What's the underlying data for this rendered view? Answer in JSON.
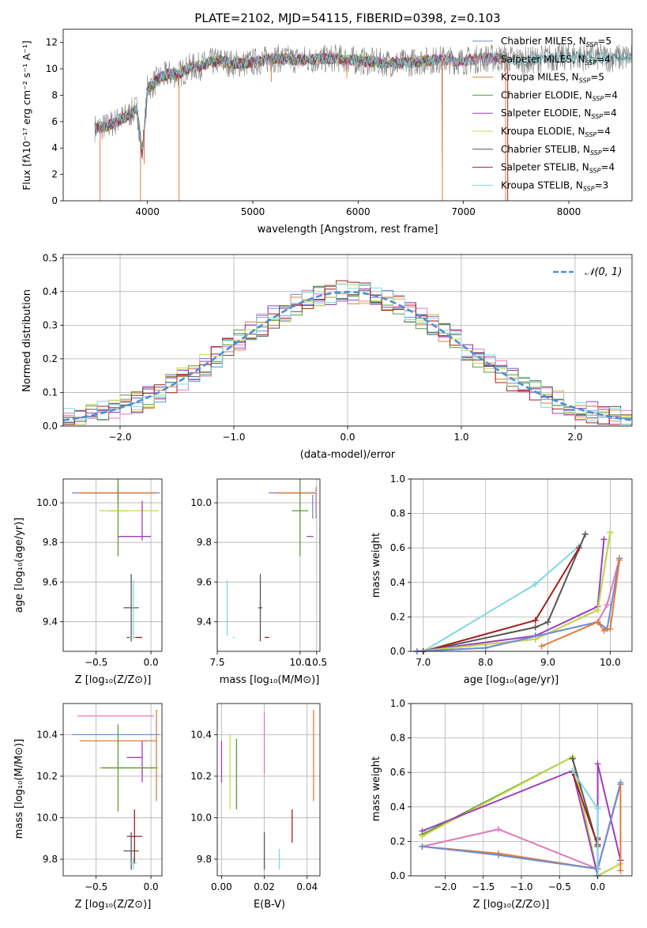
{
  "colors": {
    "Chabrier MILES": "#6a8fd8",
    "Salpeter MILES": "#e07ab8",
    "Kroupa MILES": "#e07b39",
    "Chabrier ELODIE": "#5a9a3a",
    "Salpeter ELODIE": "#9d3fbf",
    "Kroupa ELODIE": "#c8d84a",
    "Chabrier STELIB": "#555555",
    "Salpeter STELIB": "#a02020",
    "Kroupa STELIB": "#7fd8e0",
    "gauss": "#4a8fd8",
    "obs": "#808080"
  },
  "chart_data": [
    {
      "type": "line",
      "title": "PLATE=2102, MJD=54115, FIBERID=0398, z=0.103",
      "xlabel": "wavelength [Angstrom, rest frame]",
      "ylabel": "Flux [fλ10⁻¹⁷ erg cm⁻² s⁻¹ A⁻¹]",
      "xlim": [
        3200,
        8600
      ],
      "ylim": [
        0,
        13
      ],
      "xticks": [
        4000,
        5000,
        6000,
        7000,
        8000
      ],
      "yticks": [
        0,
        2,
        4,
        6,
        8,
        10,
        12
      ],
      "legend_position": "right",
      "legend": [
        {
          "label": "Chabrier MILES, N_SSP=5",
          "text": "Chabrier MILES, N",
          "n": "5"
        },
        {
          "label": "Salpeter MILES, N_SSP=4",
          "text": "Salpeter MILES, N",
          "n": "4"
        },
        {
          "label": "Kroupa MILES, N_SSP=5",
          "text": "Kroupa MILES, N",
          "n": "5"
        },
        {
          "label": "Chabrier ELODIE, N_SSP=4",
          "text": "Chabrier ELODIE, N",
          "n": "4"
        },
        {
          "label": "Salpeter ELODIE, N_SSP=4",
          "text": "Salpeter ELODIE, N",
          "n": "4"
        },
        {
          "label": "Kroupa ELODIE, N_SSP=4",
          "text": "Kroupa ELODIE, N",
          "n": "4"
        },
        {
          "label": "Chabrier STELIB, N_SSP=4",
          "text": "Chabrier STELIB, N",
          "n": "4"
        },
        {
          "label": "Salpeter STELIB, N_SSP=4",
          "text": "Salpeter STELIB, N",
          "n": "4"
        },
        {
          "label": "Kroupa STELIB, N_SSP=3",
          "text": "Kroupa STELIB, N",
          "n": "3"
        }
      ],
      "continuum": {
        "x": [
          3500,
          3600,
          3700,
          3800,
          3900,
          3950,
          4000,
          4100,
          4200,
          4300,
          4400,
          4500,
          4600,
          4700,
          4800,
          4900,
          5000,
          5200,
          5400,
          5600,
          5800,
          6000,
          6200,
          6400,
          6600,
          6800,
          7000,
          7200,
          7400,
          7600,
          7800,
          8000,
          8200,
          8400,
          8600
        ],
        "y": [
          5.5,
          5.6,
          6.0,
          6.4,
          7.0,
          3.5,
          8.5,
          9.2,
          9.6,
          9.6,
          10.1,
          10.2,
          10.5,
          10.6,
          10.4,
          10.4,
          10.5,
          10.8,
          10.7,
          10.7,
          10.8,
          10.6,
          10.5,
          10.4,
          10.6,
          10.7,
          10.6,
          10.8,
          10.8,
          10.6,
          10.8,
          10.9,
          10.9,
          10.8,
          10.9
        ]
      },
      "absorption_lines": [
        {
          "x": 3550,
          "y": 0
        },
        {
          "x": 3934,
          "y": 0
        },
        {
          "x": 3969,
          "y": 2.8
        },
        {
          "x": 4300,
          "y": 0
        },
        {
          "x": 5175,
          "y": 9.0
        },
        {
          "x": 5893,
          "y": 9.3
        },
        {
          "x": 6800,
          "y": 0
        },
        {
          "x": 7400,
          "y": 0
        }
      ]
    },
    {
      "type": "line",
      "xlabel": "(data-model)/error",
      "ylabel": "Normed distribution",
      "xlim": [
        -2.5,
        2.5
      ],
      "ylim": [
        0,
        0.51
      ],
      "xticks": [
        -2,
        -1,
        0,
        1,
        2
      ],
      "yticks": [
        0.0,
        0.1,
        0.2,
        0.3,
        0.4,
        0.5
      ],
      "legend": [
        {
          "label": "𝒩(0, 1)",
          "style": "dashed"
        }
      ],
      "bin_width": 0.1
    },
    {
      "type": "scatter",
      "xlabel": "Z [log₁₀(Z/Z⊙)]",
      "ylabel": "age  [log₁₀(age/yr)]",
      "xlim": [
        -0.8,
        0.1
      ],
      "ylim": [
        9.25,
        10.12
      ],
      "xticks": [
        -0.5,
        0.0
      ],
      "yticks": [
        9.4,
        9.6,
        9.8,
        10.0
      ],
      "errorbars": [
        {
          "series": "Chabrier MILES",
          "x": -0.32,
          "y": 10.05,
          "xerr": 0.4,
          "yerr": 0.0
        },
        {
          "series": "Salpeter MILES",
          "x": -0.32,
          "y": 10.05,
          "xerr": 0.35,
          "yerr": 0.0
        },
        {
          "series": "Kroupa MILES",
          "x": -0.3,
          "y": 10.05,
          "xerr": 0.35,
          "yerr": 0.05
        },
        {
          "series": "Chabrier ELODIE",
          "x": -0.3,
          "y": 9.96,
          "xerr": 0.08,
          "yerr": 0.23
        },
        {
          "series": "Kroupa ELODIE",
          "x": -0.2,
          "y": 9.96,
          "xerr": 0.27,
          "yerr": 0.0
        },
        {
          "series": "Salpeter ELODIE",
          "x": -0.15,
          "y": 9.83,
          "xerr": 0.15,
          "yerr": 0.0
        },
        {
          "series": "Salpeter ELODIE",
          "x": -0.08,
          "y": 9.91,
          "xerr": 0.0,
          "yerr": 0.1
        },
        {
          "series": "Chabrier STELIB",
          "x": -0.18,
          "y": 9.47,
          "xerr": 0.07,
          "yerr": 0.17
        },
        {
          "series": "Kroupa STELIB",
          "x": -0.16,
          "y": 9.47,
          "xerr": 0.0,
          "yerr": 0.14
        },
        {
          "series": "Salpeter STELIB",
          "x": -0.15,
          "y": 9.32,
          "xerr": 0.07,
          "yerr": 0.0
        },
        {
          "series": "Kroupa STELIB",
          "x": -0.17,
          "y": 9.32,
          "xerr": 0.03,
          "yerr": 0.0
        }
      ]
    },
    {
      "type": "scatter",
      "xlabel": "mass [log₁₀(M/M⊙)]",
      "ylabel": "",
      "xlim": [
        7.5,
        10.6
      ],
      "ylim": [
        9.25,
        10.12
      ],
      "xticks": [
        7.5,
        10.0,
        10.5
      ],
      "yticks": [
        9.4,
        9.6,
        9.8,
        10.0
      ],
      "errorbars": [
        {
          "series": "Chabrier MILES",
          "x": 9.75,
          "y": 10.05,
          "xerr": 0.7,
          "yerr": 0.0
        },
        {
          "series": "Salpeter MILES",
          "x": 9.9,
          "y": 10.05,
          "xerr": 0.55,
          "yerr": 0.0
        },
        {
          "series": "Kroupa MILES",
          "x": 9.85,
          "y": 10.05,
          "xerr": 0.6,
          "yerr": 0.0
        },
        {
          "series": "Chabrier MILES",
          "x": 10.38,
          "y": 9.98,
          "xerr": 0.0,
          "yerr": 0.06
        },
        {
          "series": "Salpeter MILES",
          "x": 10.48,
          "y": 10.0,
          "xerr": 0.0,
          "yerr": 0.08
        },
        {
          "series": "Chabrier ELODIE",
          "x": 10.0,
          "y": 9.96,
          "xerr": 0.25,
          "yerr": 0.23
        },
        {
          "series": "Salpeter ELODIE",
          "x": 10.3,
          "y": 9.83,
          "xerr": 0.1,
          "yerr": 0.0
        },
        {
          "series": "Chabrier STELIB",
          "x": 8.8,
          "y": 9.47,
          "xerr": 0.06,
          "yerr": 0.17
        },
        {
          "series": "Kroupa STELIB",
          "x": 7.8,
          "y": 9.47,
          "xerr": 0.0,
          "yerr": 0.14
        },
        {
          "series": "Salpeter STELIB",
          "x": 9.0,
          "y": 9.32,
          "xerr": 0.07,
          "yerr": 0.0
        },
        {
          "series": "Kroupa STELIB",
          "x": 8.0,
          "y": 9.32,
          "xerr": 0.03,
          "yerr": 0.0
        }
      ]
    },
    {
      "type": "line",
      "xlabel": "age  [log₁₀(age/yr)]",
      "ylabel": "mass weight",
      "xlim": [
        6.8,
        10.35
      ],
      "ylim": [
        0,
        1.0
      ],
      "xticks": [
        7,
        8,
        9,
        10
      ],
      "yticks": [
        0.0,
        0.2,
        0.4,
        0.6,
        0.8,
        1.0
      ],
      "series": [
        {
          "name": "Kroupa STELIB",
          "x": [
            7.0,
            8.8,
            9.5
          ],
          "y": [
            0.0,
            0.39,
            0.61
          ]
        },
        {
          "name": "Chabrier STELIB",
          "x": [
            7.0,
            8.8,
            9.0,
            9.6
          ],
          "y": [
            0.0,
            0.14,
            0.17,
            0.68
          ]
        },
        {
          "name": "Salpeter STELIB",
          "x": [
            7.0,
            8.8,
            9.5
          ],
          "y": [
            0.0,
            0.18,
            0.6
          ]
        },
        {
          "name": "Salpeter ELODIE",
          "x": [
            6.9,
            8.8,
            9.8,
            9.9
          ],
          "y": [
            0.0,
            0.09,
            0.26,
            0.65
          ]
        },
        {
          "name": "Chabrier ELODIE",
          "x": [
            6.9,
            8.8,
            9.8,
            10.0
          ],
          "y": [
            0.0,
            0.07,
            0.24,
            0.69
          ]
        },
        {
          "name": "Kroupa ELODIE",
          "x": [
            6.9,
            8.8,
            9.8,
            10.0
          ],
          "y": [
            0.0,
            0.07,
            0.24,
            0.69
          ]
        },
        {
          "name": "Salpeter MILES",
          "x": [
            6.9,
            8.0,
            9.8,
            9.95,
            10.15
          ],
          "y": [
            0.0,
            0.02,
            0.17,
            0.27,
            0.54
          ]
        },
        {
          "name": "Chabrier MILES",
          "x": [
            6.9,
            8.0,
            9.8,
            9.95,
            10.15
          ],
          "y": [
            0.0,
            0.02,
            0.17,
            0.13,
            0.54
          ]
        },
        {
          "name": "Kroupa MILES",
          "x": [
            8.9,
            9.8,
            9.9,
            10.0,
            10.15
          ],
          "y": [
            0.03,
            0.17,
            0.12,
            0.13,
            0.53
          ]
        }
      ]
    },
    {
      "type": "scatter",
      "xlabel": "Z [log₁₀(Z/Z⊙)]",
      "ylabel": "mass [log₁₀(M/M⊙)]",
      "xlim": [
        -0.8,
        0.1
      ],
      "ylim": [
        9.72,
        10.55
      ],
      "xticks": [
        -0.5,
        0.0
      ],
      "yticks": [
        9.8,
        10.0,
        10.2,
        10.4
      ],
      "errorbars": [
        {
          "series": "Salpeter MILES",
          "x": -0.32,
          "y": 10.49,
          "xerr": 0.35,
          "yerr": 0.0
        },
        {
          "series": "Chabrier MILES",
          "x": -0.32,
          "y": 10.4,
          "xerr": 0.4,
          "yerr": 0.0
        },
        {
          "series": "Kroupa MILES",
          "x": -0.3,
          "y": 10.37,
          "xerr": 0.35,
          "yerr": 0.0
        },
        {
          "series": "Kroupa MILES",
          "x": 0.05,
          "y": 10.3,
          "xerr": 0.0,
          "yerr": 0.22
        },
        {
          "series": "Salpeter ELODIE",
          "x": -0.15,
          "y": 10.29,
          "xerr": 0.07,
          "yerr": 0.0
        },
        {
          "series": "Salpeter ELODIE",
          "x": -0.08,
          "y": 10.27,
          "xerr": 0.0,
          "yerr": 0.1
        },
        {
          "series": "Chabrier ELODIE",
          "x": -0.3,
          "y": 10.24,
          "xerr": 0.0,
          "yerr": 0.21
        },
        {
          "series": "Kroupa ELODIE",
          "x": -0.2,
          "y": 10.24,
          "xerr": 0.27,
          "yerr": 0.0
        },
        {
          "series": "Chabrier ELODIE",
          "x": -0.2,
          "y": 10.24,
          "xerr": 0.25,
          "yerr": 0.0
        },
        {
          "series": "Salpeter STELIB",
          "x": -0.15,
          "y": 9.91,
          "xerr": 0.07,
          "yerr": 0.13
        },
        {
          "series": "Chabrier STELIB",
          "x": -0.18,
          "y": 9.84,
          "xerr": 0.07,
          "yerr": 0.09
        },
        {
          "series": "Kroupa STELIB",
          "x": -0.16,
          "y": 9.78,
          "xerr": 0.03,
          "yerr": 0.03
        }
      ]
    },
    {
      "type": "scatter",
      "xlabel": "E(B-V)",
      "ylabel": "",
      "xlim": [
        -0.002,
        0.046
      ],
      "ylim": [
        9.72,
        10.55
      ],
      "xticks": [
        0.0,
        0.02,
        0.04
      ],
      "yticks": [
        9.8,
        10.0,
        10.2,
        10.4
      ],
      "errorbars": [
        {
          "series": "Salpeter ELODIE",
          "x": 0.0,
          "y": 10.27,
          "xerr": 0.0,
          "yerr": 0.1
        },
        {
          "series": "Kroupa ELODIE",
          "x": 0.004,
          "y": 10.22,
          "xerr": 0.0,
          "yerr": 0.18
        },
        {
          "series": "Chabrier ELODIE",
          "x": 0.007,
          "y": 10.21,
          "xerr": 0.0,
          "yerr": 0.17
        },
        {
          "series": "Salpeter MILES",
          "x": 0.02,
          "y": 10.36,
          "xerr": 0.0,
          "yerr": 0.15
        },
        {
          "series": "Kroupa MILES",
          "x": 0.043,
          "y": 10.3,
          "xerr": 0.0,
          "yerr": 0.22
        },
        {
          "series": "Salpeter STELIB",
          "x": 0.033,
          "y": 9.96,
          "xerr": 0.0,
          "yerr": 0.08
        },
        {
          "series": "Chabrier STELIB",
          "x": 0.02,
          "y": 9.84,
          "xerr": 0.0,
          "yerr": 0.09
        },
        {
          "series": "Kroupa STELIB",
          "x": 0.027,
          "y": 9.8,
          "xerr": 0.0,
          "yerr": 0.05
        }
      ]
    },
    {
      "type": "line",
      "xlabel": "Z [log₁₀(Z/Z⊙)]",
      "ylabel": "mass weight",
      "xlim": [
        -2.45,
        0.45
      ],
      "ylim": [
        0,
        1.0
      ],
      "xticks": [
        -2.0,
        -1.5,
        -1.0,
        -0.5,
        0.0
      ],
      "yticks": [
        0.0,
        0.2,
        0.4,
        0.6,
        0.8,
        1.0
      ],
      "series": [
        {
          "name": "Chabrier ELODIE",
          "x": [
            -2.3,
            -0.33,
            0.0,
            0.3
          ],
          "y": [
            0.24,
            0.69,
            0.0,
            0.07
          ]
        },
        {
          "name": "Kroupa ELODIE",
          "x": [
            -2.3,
            -0.33,
            0.0,
            0.3
          ],
          "y": [
            0.23,
            0.69,
            0.0,
            0.07
          ]
        },
        {
          "name": "Salpeter ELODIE",
          "x": [
            -2.3,
            -0.33,
            0.0,
            0.0,
            0.3
          ],
          "y": [
            0.26,
            0.61,
            0.0,
            0.65,
            0.09
          ]
        },
        {
          "name": "Salpeter MILES",
          "x": [
            -2.3,
            -1.3,
            0.0,
            0.3
          ],
          "y": [
            0.17,
            0.27,
            0.04,
            0.54
          ]
        },
        {
          "name": "Kroupa MILES",
          "x": [
            -2.3,
            -1.3,
            0.0,
            0.3,
            0.3
          ],
          "y": [
            0.17,
            0.13,
            0.04,
            0.53,
            0.03
          ]
        },
        {
          "name": "Chabrier MILES",
          "x": [
            -2.3,
            -1.3,
            0.0,
            0.3
          ],
          "y": [
            0.17,
            0.12,
            0.04,
            0.54
          ]
        },
        {
          "name": "Chabrier STELIB",
          "x": [
            -0.33,
            0.0,
            0.0
          ],
          "y": [
            0.68,
            0.17,
            0.22
          ]
        },
        {
          "name": "Salpeter STELIB",
          "x": [
            -0.33,
            0.0,
            0.0
          ],
          "y": [
            0.6,
            0.18,
            0.21
          ]
        },
        {
          "name": "Kroupa STELIB",
          "x": [
            -0.33,
            0.0,
            0.0
          ],
          "y": [
            0.61,
            0.39,
            0.0
          ]
        }
      ]
    }
  ]
}
